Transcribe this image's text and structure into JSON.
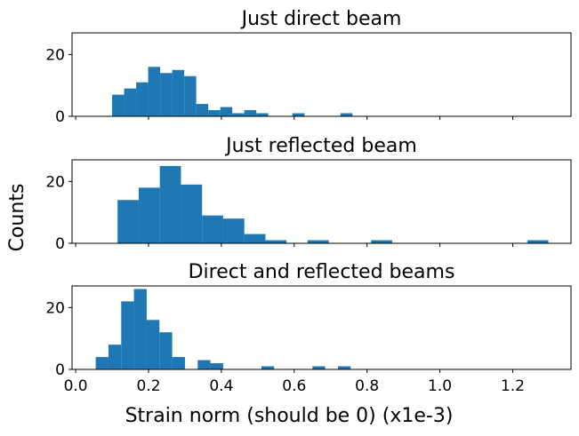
{
  "figure": {
    "ylabel": "Counts",
    "xlabel": "Strain norm (should be 0) (x1e-3)"
  },
  "chart_data": [
    {
      "type": "bar",
      "title": "Just direct beam",
      "xlim": [
        -0.01,
        1.36
      ],
      "ylim": [
        0,
        27
      ],
      "yticks": [
        0,
        20
      ],
      "xticks": [
        0.0,
        0.2,
        0.4,
        0.6,
        0.8,
        1.0,
        1.2
      ],
      "xticklabels_shown": false,
      "bar_color": "#1f77b4",
      "bins": [
        {
          "x0": 0.1,
          "x1": 0.133,
          "count": 7
        },
        {
          "x0": 0.133,
          "x1": 0.166,
          "count": 9
        },
        {
          "x0": 0.166,
          "x1": 0.199,
          "count": 11
        },
        {
          "x0": 0.199,
          "x1": 0.232,
          "count": 16
        },
        {
          "x0": 0.232,
          "x1": 0.265,
          "count": 14
        },
        {
          "x0": 0.265,
          "x1": 0.298,
          "count": 15
        },
        {
          "x0": 0.298,
          "x1": 0.331,
          "count": 13
        },
        {
          "x0": 0.331,
          "x1": 0.364,
          "count": 4
        },
        {
          "x0": 0.364,
          "x1": 0.397,
          "count": 2
        },
        {
          "x0": 0.397,
          "x1": 0.43,
          "count": 3
        },
        {
          "x0": 0.43,
          "x1": 0.463,
          "count": 1
        },
        {
          "x0": 0.463,
          "x1": 0.496,
          "count": 2
        },
        {
          "x0": 0.496,
          "x1": 0.529,
          "count": 1
        },
        {
          "x0": 0.595,
          "x1": 0.628,
          "count": 1
        },
        {
          "x0": 0.727,
          "x1": 0.76,
          "count": 1
        }
      ]
    },
    {
      "type": "bar",
      "title": "Just reflected beam",
      "xlim": [
        -0.01,
        1.36
      ],
      "ylim": [
        0,
        27
      ],
      "yticks": [
        0,
        20
      ],
      "xticks": [
        0.0,
        0.2,
        0.4,
        0.6,
        0.8,
        1.0,
        1.2
      ],
      "xticklabels_shown": false,
      "bar_color": "#1f77b4",
      "bins": [
        {
          "x0": 0.115,
          "x1": 0.173,
          "count": 14
        },
        {
          "x0": 0.173,
          "x1": 0.231,
          "count": 18
        },
        {
          "x0": 0.231,
          "x1": 0.289,
          "count": 25
        },
        {
          "x0": 0.289,
          "x1": 0.347,
          "count": 19
        },
        {
          "x0": 0.347,
          "x1": 0.405,
          "count": 9
        },
        {
          "x0": 0.405,
          "x1": 0.463,
          "count": 8
        },
        {
          "x0": 0.463,
          "x1": 0.521,
          "count": 3
        },
        {
          "x0": 0.521,
          "x1": 0.579,
          "count": 1
        },
        {
          "x0": 0.637,
          "x1": 0.695,
          "count": 1
        },
        {
          "x0": 0.811,
          "x1": 0.869,
          "count": 1
        },
        {
          "x0": 1.24,
          "x1": 1.298,
          "count": 1
        }
      ]
    },
    {
      "type": "bar",
      "title": "Direct and reflected beams",
      "xlim": [
        -0.01,
        1.36
      ],
      "ylim": [
        0,
        27
      ],
      "yticks": [
        0,
        20
      ],
      "xticks": [
        0.0,
        0.2,
        0.4,
        0.6,
        0.8,
        1.0,
        1.2
      ],
      "xticklabels": [
        "0.0",
        "0.2",
        "0.4",
        "0.6",
        "0.8",
        "1.0",
        "1.2"
      ],
      "xticklabels_shown": true,
      "bar_color": "#1f77b4",
      "bins": [
        {
          "x0": 0.055,
          "x1": 0.09,
          "count": 4
        },
        {
          "x0": 0.09,
          "x1": 0.125,
          "count": 8
        },
        {
          "x0": 0.125,
          "x1": 0.16,
          "count": 22
        },
        {
          "x0": 0.16,
          "x1": 0.195,
          "count": 26
        },
        {
          "x0": 0.195,
          "x1": 0.23,
          "count": 16
        },
        {
          "x0": 0.23,
          "x1": 0.265,
          "count": 12
        },
        {
          "x0": 0.265,
          "x1": 0.3,
          "count": 4
        },
        {
          "x0": 0.335,
          "x1": 0.37,
          "count": 3
        },
        {
          "x0": 0.37,
          "x1": 0.405,
          "count": 2
        },
        {
          "x0": 0.51,
          "x1": 0.545,
          "count": 1
        },
        {
          "x0": 0.65,
          "x1": 0.685,
          "count": 1
        },
        {
          "x0": 0.72,
          "x1": 0.755,
          "count": 1
        }
      ]
    }
  ]
}
